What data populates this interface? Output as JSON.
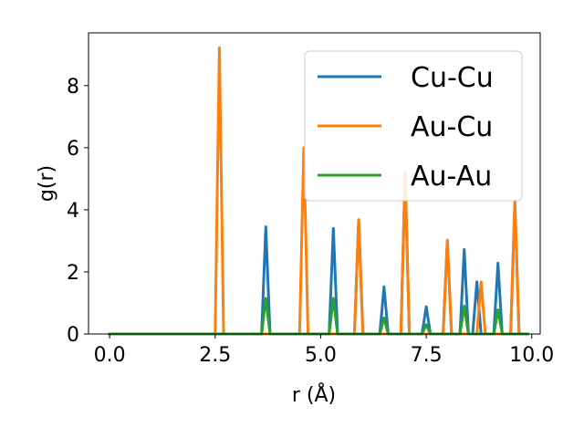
{
  "chart_data": {
    "type": "line",
    "title": "",
    "xlabel": "r (Å)",
    "ylabel": "g(r)",
    "xlim": [
      -0.5,
      10.2
    ],
    "ylim": [
      0,
      9.7
    ],
    "xticks": [
      0.0,
      2.5,
      5.0,
      7.5,
      10.0
    ],
    "xtick_labels": [
      "0.0",
      "2.5",
      "5.0",
      "7.5",
      "10.0"
    ],
    "yticks": [
      0,
      2,
      4,
      6,
      8
    ],
    "ytick_labels": [
      "0",
      "2",
      "4",
      "6",
      "8"
    ],
    "grid": false,
    "legend_position": "upper right",
    "series": [
      {
        "name": "Cu-Cu",
        "color": "#1f77b4",
        "x": [
          0.0,
          3.6,
          3.7,
          3.8,
          5.2,
          5.3,
          5.4,
          5.8,
          5.9,
          6.0,
          6.4,
          6.5,
          6.6,
          6.9,
          7.0,
          7.1,
          7.4,
          7.5,
          7.6,
          7.9,
          8.0,
          8.1,
          8.3,
          8.4,
          8.5,
          8.6,
          8.7,
          8.8,
          9.1,
          9.2,
          9.3,
          9.5,
          9.6,
          9.7,
          9.9
        ],
        "y": [
          0.0,
          0.0,
          3.45,
          0.0,
          0.0,
          3.4,
          0.0,
          0.0,
          3.68,
          0.0,
          0.0,
          1.52,
          0.0,
          0.0,
          5.2,
          0.0,
          0.0,
          0.88,
          0.0,
          0.0,
          3.0,
          0.0,
          0.0,
          2.72,
          0.0,
          0.0,
          1.68,
          0.0,
          0.0,
          2.28,
          0.0,
          0.0,
          4.25,
          0.0,
          0.0
        ]
      },
      {
        "name": "Au-Cu",
        "color": "#ff7f0e",
        "x": [
          0.0,
          2.5,
          2.6,
          2.7,
          4.5,
          4.6,
          4.7,
          5.8,
          5.9,
          6.0,
          6.9,
          7.0,
          7.1,
          7.9,
          8.0,
          8.1,
          8.7,
          8.8,
          8.9,
          9.5,
          9.6,
          9.7,
          9.9
        ],
        "y": [
          0.0,
          0.0,
          9.22,
          0.0,
          0.0,
          6.0,
          0.0,
          0.0,
          3.68,
          0.0,
          0.0,
          5.22,
          0.0,
          0.0,
          3.02,
          0.0,
          0.0,
          1.68,
          0.0,
          0.0,
          4.28,
          0.0,
          0.0
        ]
      },
      {
        "name": "Au-Au",
        "color": "#2ca02c",
        "x": [
          0.0,
          3.6,
          3.7,
          3.8,
          5.2,
          5.3,
          5.4,
          6.4,
          6.5,
          6.6,
          7.4,
          7.5,
          7.6,
          8.3,
          8.4,
          8.5,
          9.1,
          9.2,
          9.3,
          9.9
        ],
        "y": [
          0.0,
          0.0,
          1.15,
          0.0,
          0.0,
          1.15,
          0.0,
          0.0,
          0.52,
          0.0,
          0.0,
          0.3,
          0.0,
          0.0,
          0.9,
          0.0,
          0.0,
          0.78,
          0.0,
          0.0
        ]
      }
    ]
  }
}
